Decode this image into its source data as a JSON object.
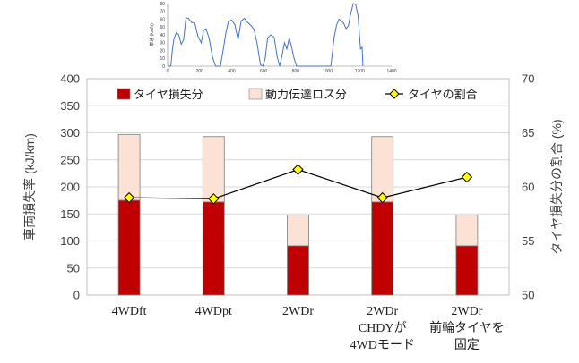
{
  "chart_data": [
    {
      "type": "bar",
      "categories": [
        [
          "4WDft"
        ],
        [
          "4WDpt"
        ],
        [
          "2WDr"
        ],
        [
          "2WDr",
          "CHDYが",
          "4WDモード"
        ],
        [
          "2WDr",
          "前輪タイヤを",
          "固定"
        ]
      ],
      "series": [
        {
          "name": "タイヤ損失分",
          "type": "stacked_bar",
          "axis": "left",
          "color": "#c00000",
          "values": [
            175,
            172,
            91,
            172,
            91
          ]
        },
        {
          "name": "動力伝達ロス分",
          "type": "stacked_bar",
          "axis": "left",
          "color": "#fbe2d5",
          "values": [
            122,
            121,
            57,
            121,
            57
          ]
        },
        {
          "name": "タイヤの割合",
          "type": "line",
          "axis": "right",
          "color": "#ffff00",
          "values": [
            59.0,
            58.9,
            61.6,
            59.0,
            60.9
          ]
        }
      ],
      "ylabel": "車両損失率 (kJ/km)",
      "y2label": "タイヤ損失分の割合 (%)",
      "ylim": [
        0,
        400
      ],
      "y2lim": [
        50,
        70
      ],
      "yticks": [
        "0",
        "50",
        "100",
        "150",
        "200",
        "250",
        "300",
        "350",
        "400"
      ],
      "y2ticks": [
        "50",
        "55",
        "60",
        "65",
        "70"
      ],
      "grid": true,
      "legend": "top"
    },
    {
      "type": "line",
      "ylabel": "車速 (km/h)",
      "xlim": [
        0,
        1400
      ],
      "ylim": [
        0,
        80
      ],
      "xticks": [
        "0",
        "200",
        "400",
        "600",
        "800",
        "1000",
        "1200",
        "1400"
      ],
      "yticks": [
        "0",
        "10",
        "20",
        "30",
        "40",
        "50",
        "60",
        "70",
        "80"
      ],
      "grid": false,
      "color": "#4472c4",
      "x": [
        0,
        20,
        30,
        40,
        55,
        70,
        85,
        100,
        115,
        130,
        150,
        170,
        190,
        210,
        225,
        240,
        260,
        280,
        300,
        330,
        350,
        365,
        380,
        400,
        420,
        440,
        460,
        480,
        500,
        520,
        540,
        560,
        580,
        595,
        610,
        625,
        645,
        665,
        685,
        700,
        715,
        730,
        745,
        760,
        775,
        790,
        805,
        830,
        860,
        900,
        940,
        990,
        1020,
        1040,
        1055,
        1070,
        1085,
        1100,
        1115,
        1130,
        1145,
        1160,
        1175,
        1190,
        1205,
        1215,
        1220
      ],
      "y": [
        0,
        0,
        22,
        35,
        43,
        40,
        28,
        34,
        62,
        61,
        56,
        55,
        38,
        30,
        46,
        48,
        35,
        12,
        0,
        0,
        24,
        44,
        57,
        59,
        53,
        34,
        58,
        61,
        56,
        52,
        47,
        28,
        2,
        0,
        10,
        36,
        40,
        37,
        12,
        0,
        14,
        30,
        22,
        36,
        24,
        10,
        0,
        0,
        0,
        0,
        0,
        0,
        0,
        36,
        52,
        60,
        58,
        55,
        48,
        52,
        68,
        80,
        79,
        64,
        22,
        24,
        0
      ]
    }
  ]
}
